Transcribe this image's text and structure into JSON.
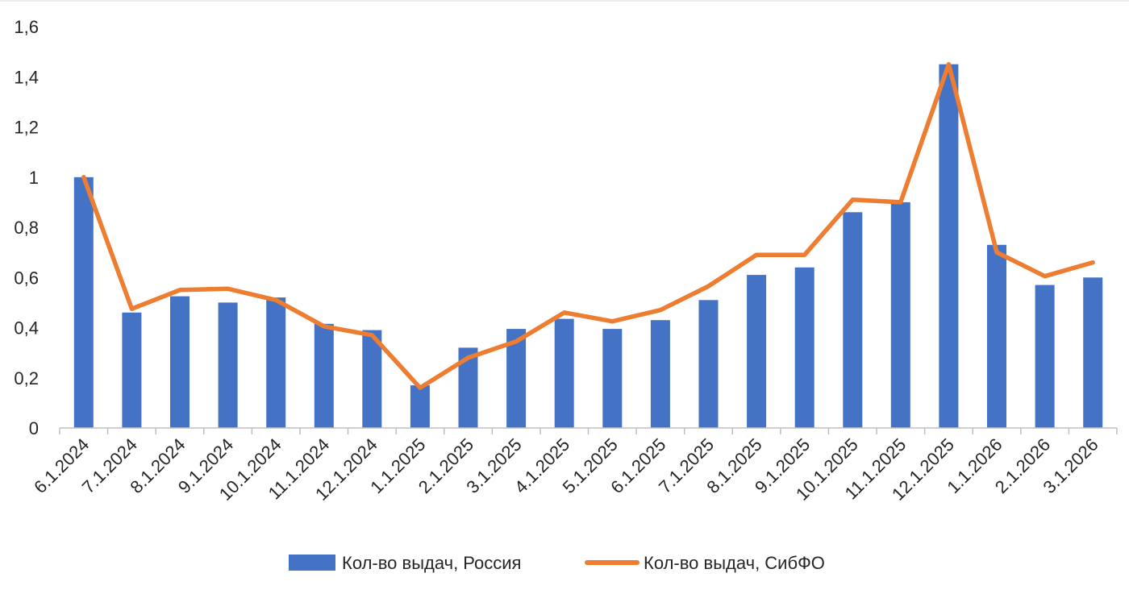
{
  "chart_data": {
    "type": "bar+line",
    "title": "",
    "xlabel": "",
    "ylabel": "",
    "ylim": [
      0,
      1.6
    ],
    "yticks": [
      "0",
      "0,2",
      "0,4",
      "0,6",
      "0,8",
      "1",
      "1,2",
      "1,4",
      "1,6"
    ],
    "ytick_values": [
      0,
      0.2,
      0.4,
      0.6,
      0.8,
      1.0,
      1.2,
      1.4,
      1.6
    ],
    "categories": [
      "6.1.2024",
      "7.1.2024",
      "8.1.2024",
      "9.1.2024",
      "10.1.2024",
      "11.1.2024",
      "12.1.2024",
      "1.1.2025",
      "2.1.2025",
      "3.1.2025",
      "4.1.2025",
      "5.1.2025",
      "6.1.2025",
      "7.1.2025",
      "8.1.2025",
      "9.1.2025",
      "10.1.2025",
      "11.1.2025",
      "12.1.2025",
      "1.1.2026",
      "2.1.2026",
      "3.1.2026"
    ],
    "series": [
      {
        "name": "Кол-во выдач, Россия",
        "kind": "bar",
        "color": "#4472C4",
        "values": [
          1.0,
          0.46,
          0.525,
          0.5,
          0.52,
          0.415,
          0.39,
          0.17,
          0.32,
          0.395,
          0.435,
          0.395,
          0.43,
          0.51,
          0.61,
          0.64,
          0.86,
          0.9,
          1.45,
          0.73,
          0.57,
          0.6
        ]
      },
      {
        "name": "Кол-во выдач, СибФО",
        "kind": "line",
        "color": "#ED7D31",
        "values": [
          1.0,
          0.475,
          0.55,
          0.555,
          0.51,
          0.405,
          0.37,
          0.16,
          0.28,
          0.345,
          0.46,
          0.425,
          0.47,
          0.565,
          0.69,
          0.69,
          0.91,
          0.9,
          1.45,
          0.7,
          0.605,
          0.66
        ]
      }
    ],
    "legend": "bottom-center"
  }
}
